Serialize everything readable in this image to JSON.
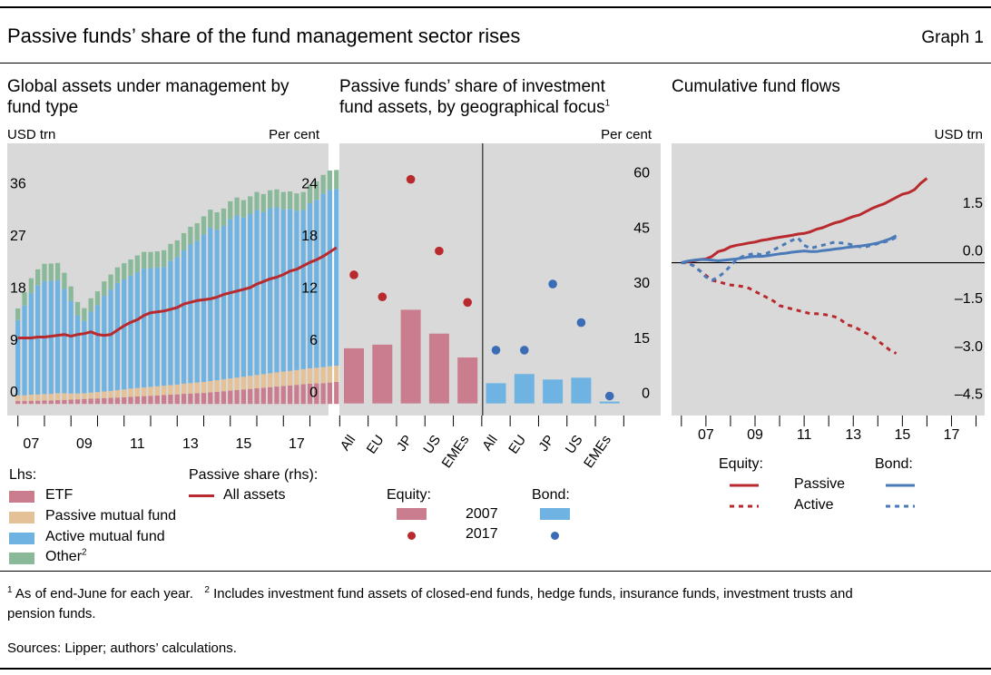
{
  "header": {
    "title": "Passive funds’ share of the fund management sector rises",
    "graph_label": "Graph 1"
  },
  "colors": {
    "panel_bg": "#d9d9d9",
    "etf": "#c97d8e",
    "passive_mf": "#e4c196",
    "active_mf": "#6fb3e3",
    "other": "#8ab99a",
    "passive_share": "#b82a2e",
    "bond": "#4a7ab8",
    "bar_2007_equity": "#c97d8e",
    "bar_2007_bond": "#6fb3e3",
    "dot_2017_equity": "#b82a2e",
    "dot_2017_bond": "#3a6db5"
  },
  "chart_data": [
    {
      "type": "area",
      "id": "panel1",
      "title": "Global assets under management by fund type",
      "ylabel_left": "USD trn",
      "ylabel_right": "Per cent",
      "x_ticks": [
        "07",
        "09",
        "11",
        "13",
        "15",
        "17"
      ],
      "x_tick_positions": [
        2007,
        2009,
        2011,
        2013,
        2015,
        2017
      ],
      "xlim": [
        2005.6,
        2017.7
      ],
      "ylim_left": [
        -2,
        45
      ],
      "ylim_right": [
        -1.33,
        30
      ],
      "yticks_left": [
        0,
        9,
        18,
        27,
        36
      ],
      "yticks_right": [
        0,
        6,
        12,
        18,
        24
      ],
      "x_start": 2006.0,
      "x_step": 0.25,
      "stack_order": [
        "etf",
        "passive_mf",
        "active_mf",
        "other"
      ],
      "series": [
        {
          "name": "ETF",
          "key": "etf",
          "values": [
            0.5,
            0.5,
            0.55,
            0.55,
            0.6,
            0.6,
            0.65,
            0.7,
            0.75,
            0.8,
            0.85,
            0.9,
            0.95,
            1.0,
            1.05,
            1.1,
            1.15,
            1.25,
            1.3,
            1.35,
            1.4,
            1.45,
            1.55,
            1.6,
            1.65,
            1.75,
            1.8,
            1.85,
            1.9,
            2.0,
            2.1,
            2.2,
            2.3,
            2.4,
            2.5,
            2.6,
            2.7,
            2.8,
            2.9,
            3.0,
            3.1,
            3.2,
            3.3,
            3.4,
            3.5,
            3.55,
            3.6,
            3.7,
            3.8
          ]
        },
        {
          "name": "Passive mutual fund",
          "key": "passive_mf",
          "values": [
            1.0,
            1.0,
            1.05,
            1.1,
            1.1,
            1.15,
            1.2,
            1.15,
            1.05,
            1.0,
            1.0,
            1.05,
            1.1,
            1.15,
            1.2,
            1.3,
            1.35,
            1.4,
            1.45,
            1.5,
            1.55,
            1.6,
            1.6,
            1.65,
            1.7,
            1.75,
            1.8,
            1.85,
            1.9,
            1.95,
            2.0,
            2.05,
            2.1,
            2.15,
            2.2,
            2.25,
            2.3,
            2.35,
            2.4,
            2.45,
            2.5,
            2.5,
            2.55,
            2.6,
            2.65,
            2.7,
            2.75,
            2.8,
            2.8
          ]
        },
        {
          "name": "Active mutual fund",
          "key": "active_mf",
          "values": [
            13.0,
            15.5,
            17.5,
            18.8,
            19.5,
            19.5,
            19.5,
            18.0,
            16.0,
            13.5,
            12.5,
            14.0,
            15.0,
            16.5,
            17.5,
            18.5,
            19.0,
            19.5,
            20.0,
            20.5,
            20.5,
            20.5,
            20.5,
            21.5,
            22.0,
            23.0,
            24.0,
            24.5,
            25.5,
            26.5,
            26.0,
            26.5,
            27.5,
            28.0,
            27.5,
            28.0,
            28.5,
            28.0,
            28.5,
            28.5,
            28.0,
            28.0,
            27.5,
            27.5,
            28.5,
            29.0,
            30.0,
            30.5,
            30.5
          ]
        },
        {
          "name": "Other",
          "key": "other",
          "values": [
            2.0,
            2.3,
            2.6,
            2.8,
            3.0,
            3.0,
            3.0,
            2.8,
            2.5,
            2.3,
            2.2,
            2.3,
            2.4,
            2.5,
            2.6,
            2.7,
            2.8,
            2.8,
            2.9,
            2.9,
            2.8,
            2.8,
            2.9,
            2.9,
            2.9,
            3.0,
            3.0,
            3.0,
            3.1,
            3.1,
            3.0,
            3.0,
            3.1,
            3.1,
            3.0,
            3.0,
            3.1,
            3.1,
            3.1,
            3.1,
            3.0,
            3.0,
            3.0,
            3.1,
            3.2,
            3.2,
            3.2,
            3.3,
            3.3
          ]
        },
        {
          "name": "All assets",
          "key": "passive_share",
          "axis": "right",
          "values": [
            7.6,
            7.6,
            7.6,
            7.7,
            7.7,
            7.8,
            7.9,
            8.0,
            7.8,
            8.0,
            8.1,
            8.3,
            8.0,
            7.9,
            8.0,
            8.5,
            9.0,
            9.4,
            9.7,
            10.2,
            10.5,
            10.6,
            10.7,
            10.9,
            11.1,
            11.5,
            11.7,
            11.9,
            12.0,
            12.1,
            12.3,
            12.6,
            12.8,
            13.0,
            13.2,
            13.4,
            13.8,
            14.1,
            14.4,
            14.6,
            14.9,
            15.3,
            15.5,
            15.9,
            16.3,
            16.6,
            17.0,
            17.5,
            18.0
          ]
        }
      ],
      "legend": {
        "lhs_label": "Lhs:",
        "rhs_label": "Passive share (rhs):",
        "items": [
          {
            "label": "ETF",
            "key": "etf"
          },
          {
            "label": "Passive mutual fund",
            "key": "passive_mf"
          },
          {
            "label": "Active mutual fund",
            "key": "active_mf"
          },
          {
            "label": "Other",
            "key": "other",
            "sup": "2"
          }
        ],
        "line_item": {
          "label": "All assets",
          "key": "passive_share"
        }
      }
    },
    {
      "type": "bar",
      "id": "panel2",
      "title_line1": "Passive funds’ share of investment",
      "title_line2": "fund assets, by geographical focus",
      "title_sup": "1",
      "ylabel_right": "Per cent",
      "ylim": [
        -3.3,
        70.8
      ],
      "yticks": [
        0,
        15,
        30,
        45,
        60
      ],
      "groups": [
        {
          "name": "Equity",
          "key": "equity",
          "categories": [
            "All",
            "EU",
            "JP",
            "US",
            "EMEs"
          ],
          "values_2007": [
            15,
            16,
            25.5,
            19,
            12.5
          ],
          "values_2017": [
            35,
            29,
            61,
            41.5,
            27.5
          ]
        },
        {
          "name": "Bond",
          "key": "bond",
          "categories": [
            "All",
            "EU",
            "JP",
            "US",
            "EMEs"
          ],
          "values_2007": [
            5.5,
            8,
            6.5,
            7,
            0.5
          ],
          "values_2017": [
            14.5,
            14.5,
            32.5,
            22,
            2
          ]
        }
      ],
      "legend": {
        "equity_label": "Equity:",
        "bond_label": "Bond:",
        "year_2007": "2007",
        "year_2017": "2017"
      }
    },
    {
      "type": "line",
      "id": "panel3",
      "title": "Cumulative fund flows",
      "ylabel_right": "USD trn",
      "x_ticks": [
        "07",
        "09",
        "11",
        "13",
        "15",
        "17"
      ],
      "x_tick_positions": [
        2007,
        2009,
        2011,
        2013,
        2015,
        2017
      ],
      "xlim": [
        2005.6,
        2018.35
      ],
      "ylim": [
        -4.8,
        3.75
      ],
      "yticks": [
        -4.5,
        -3.0,
        -1.5,
        0.0,
        1.5
      ],
      "ytick_labels": [
        "–4.5",
        "–3.0",
        "–1.5",
        "0.0",
        "1.5"
      ],
      "x_start": 2006.0,
      "x_step": 0.25,
      "series": [
        {
          "name": "Equity Passive",
          "key": "eq_passive",
          "style": "solid",
          "color_key": "passive_share",
          "values": [
            0,
            0.03,
            0.06,
            0.1,
            0.12,
            0.2,
            0.35,
            0.4,
            0.5,
            0.55,
            0.58,
            0.62,
            0.65,
            0.7,
            0.73,
            0.77,
            0.8,
            0.83,
            0.86,
            0.9,
            0.92,
            0.97,
            1.05,
            1.1,
            1.18,
            1.25,
            1.3,
            1.38,
            1.45,
            1.5,
            1.6,
            1.7,
            1.78,
            1.85,
            1.95,
            2.05,
            2.15,
            2.2,
            2.3,
            2.5,
            2.65
          ]
        },
        {
          "name": "Equity Active",
          "key": "eq_active",
          "style": "dashed",
          "color_key": "passive_share",
          "values": [
            0,
            0.0,
            -0.1,
            -0.25,
            -0.4,
            -0.55,
            -0.6,
            -0.65,
            -0.7,
            -0.72,
            -0.75,
            -0.8,
            -0.9,
            -1.0,
            -1.1,
            -1.2,
            -1.35,
            -1.4,
            -1.45,
            -1.5,
            -1.55,
            -1.6,
            -1.6,
            -1.62,
            -1.65,
            -1.7,
            -1.8,
            -1.95,
            -2.0,
            -2.1,
            -2.2,
            -2.3,
            -2.45,
            -2.6,
            -2.75,
            -2.85
          ]
        },
        {
          "name": "Bond Passive",
          "key": "bd_passive",
          "style": "solid",
          "color_key": "bond",
          "values": [
            0,
            0.05,
            0.08,
            0.1,
            0.1,
            0.08,
            0.06,
            0.08,
            0.1,
            0.12,
            0.15,
            0.18,
            0.2,
            0.2,
            0.22,
            0.25,
            0.28,
            0.3,
            0.33,
            0.35,
            0.37,
            0.35,
            0.35,
            0.38,
            0.4,
            0.43,
            0.45,
            0.48,
            0.5,
            0.52,
            0.55,
            0.58,
            0.62,
            0.68,
            0.75,
            0.85
          ]
        },
        {
          "name": "Bond Active",
          "key": "bd_active",
          "style": "dashed",
          "color_key": "bond",
          "values": [
            0,
            0.0,
            -0.1,
            -0.25,
            -0.45,
            -0.55,
            -0.45,
            -0.3,
            -0.1,
            0.1,
            0.2,
            0.25,
            0.3,
            0.25,
            0.3,
            0.4,
            0.5,
            0.6,
            0.7,
            0.78,
            0.55,
            0.45,
            0.5,
            0.55,
            0.6,
            0.65,
            0.62,
            0.6,
            0.55,
            0.5,
            0.5,
            0.55,
            0.6,
            0.65,
            0.7,
            0.8
          ]
        }
      ],
      "legend": {
        "equity_label": "Equity:",
        "bond_label": "Bond:",
        "passive_label": "Passive",
        "active_label": "Active"
      }
    }
  ],
  "footnotes": {
    "note1_num": "1",
    "note1_text": "As of end-June for each year.",
    "note2_num": "2",
    "note2_line1": "Includes investment fund assets of closed-end funds, hedge funds, insurance funds, investment trusts and",
    "note2_line2": "pension funds.",
    "sources": "Sources: Lipper; authors’ calculations."
  }
}
